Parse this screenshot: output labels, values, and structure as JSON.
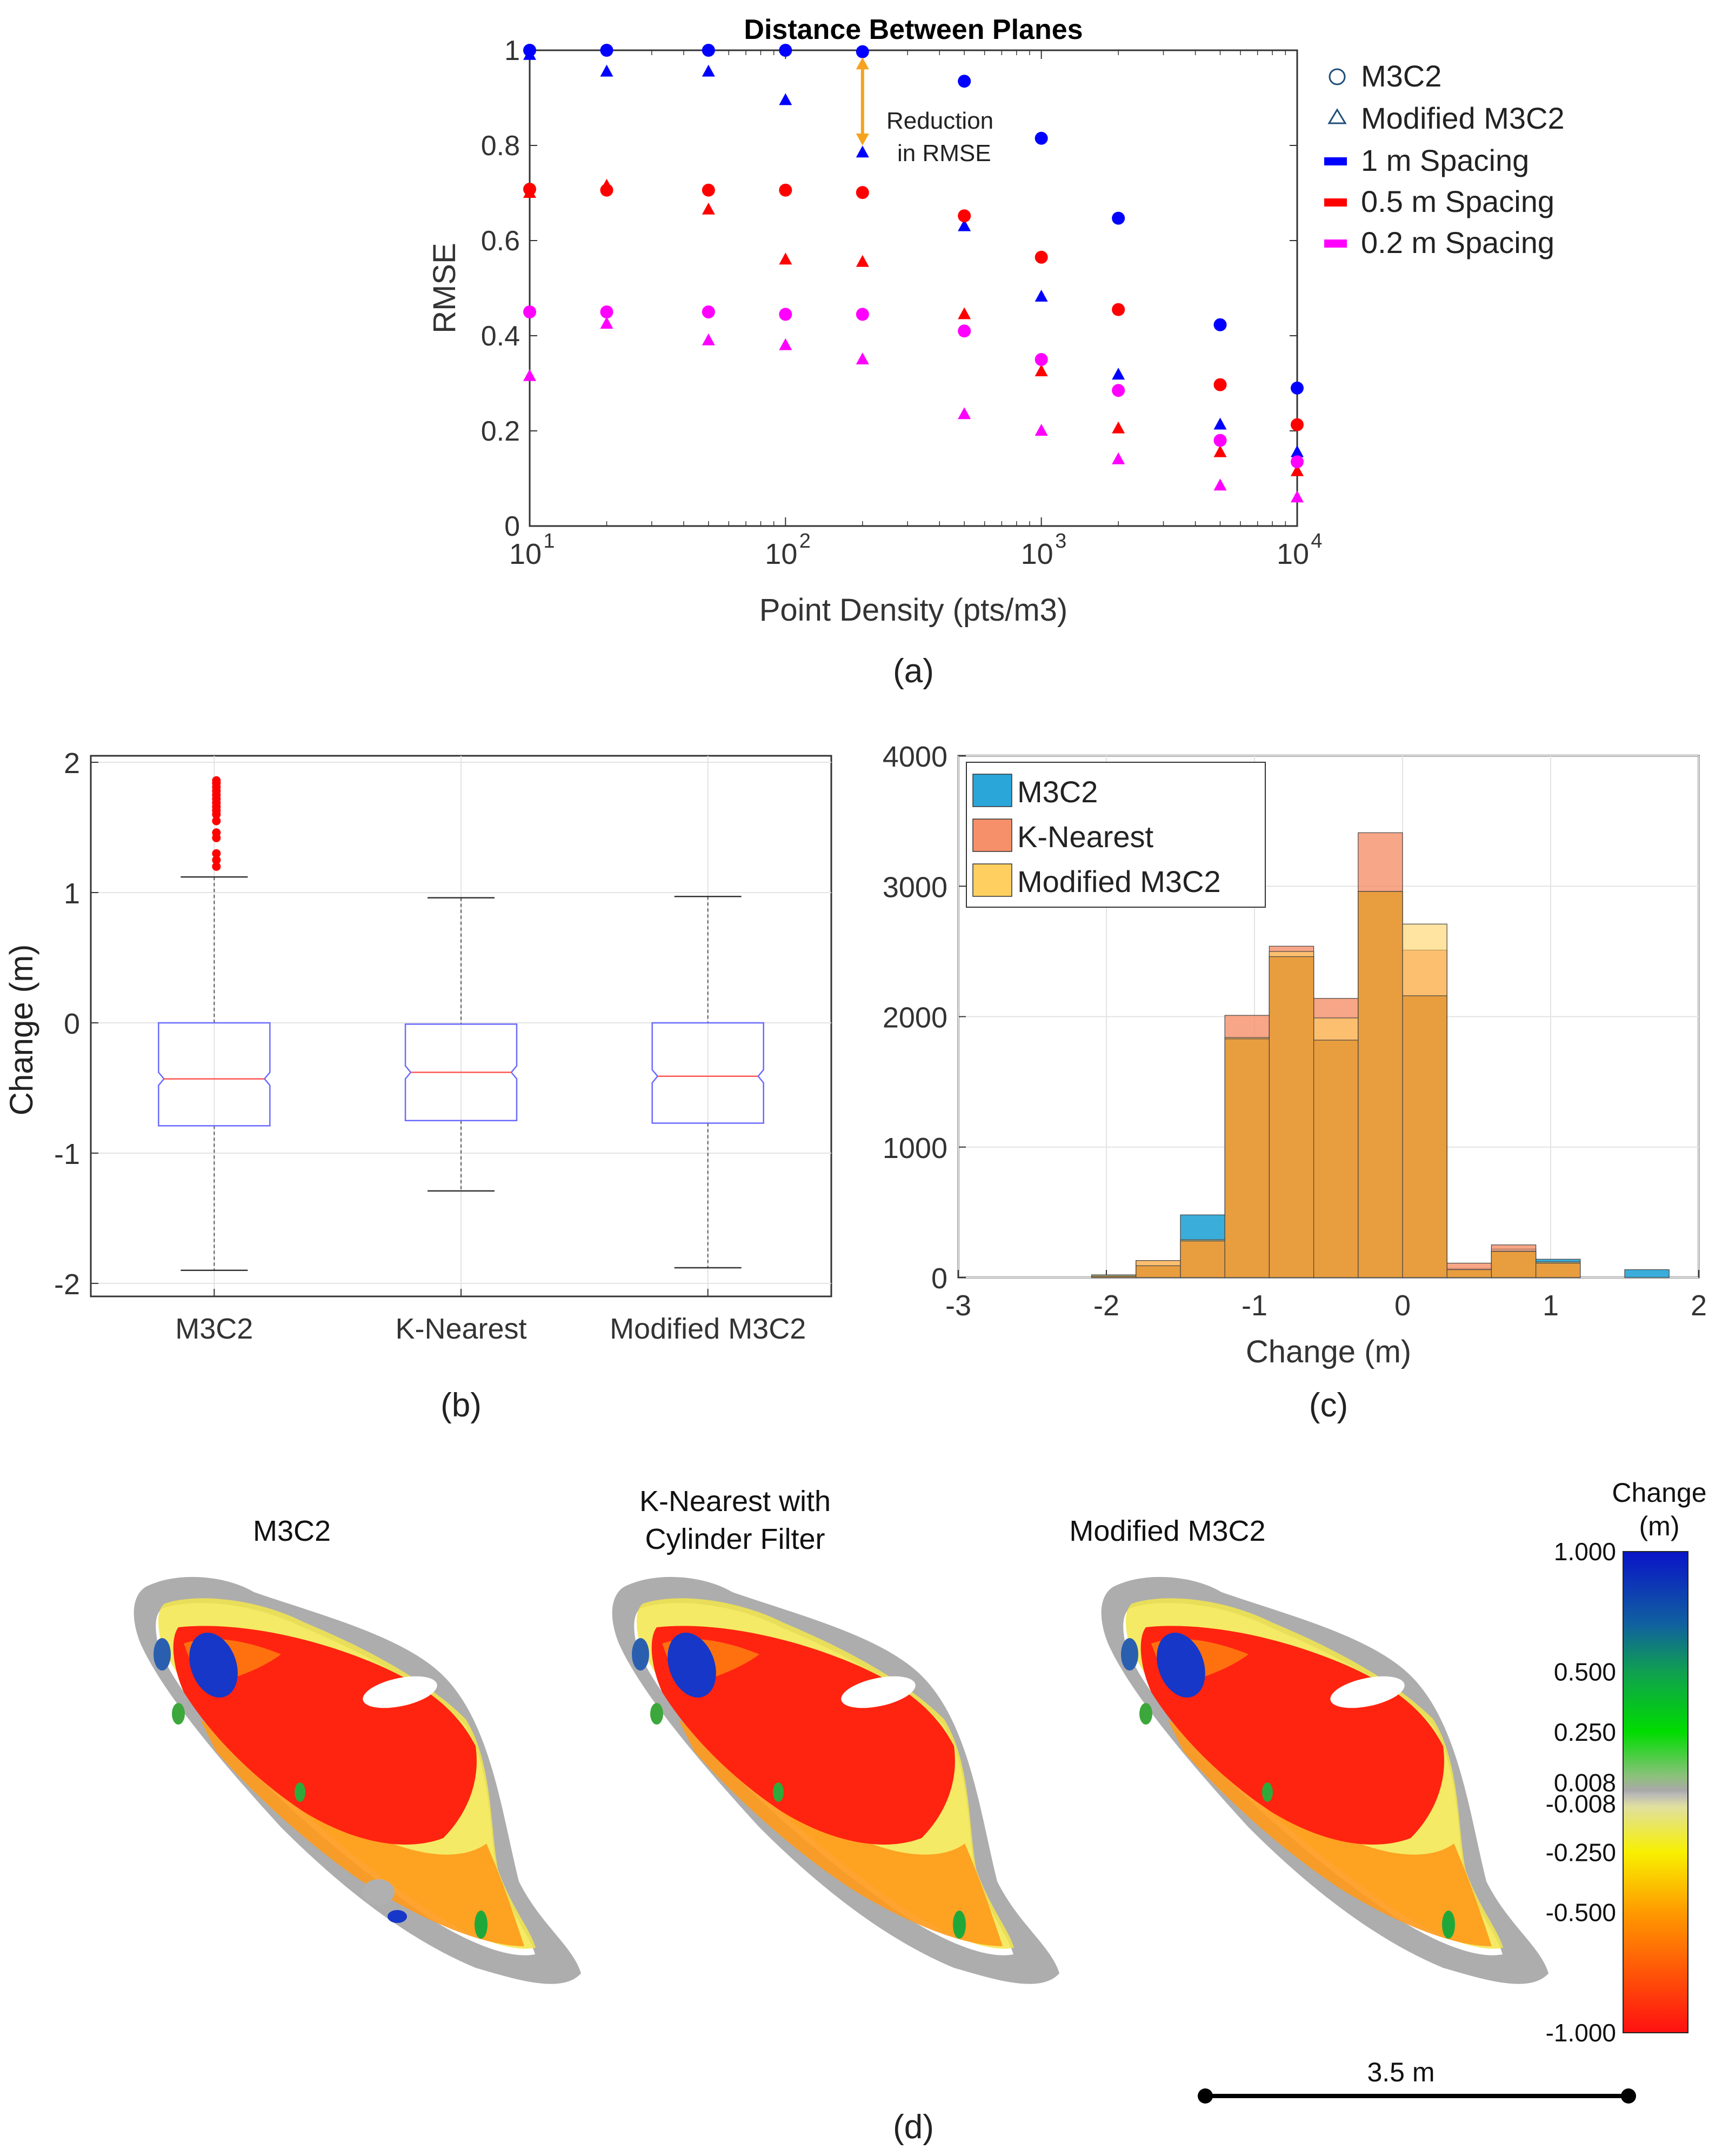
{
  "panel_labels": {
    "a": "(a)",
    "b": "(b)",
    "c": "(c)",
    "d": "(d)"
  },
  "chart_data": [
    {
      "type": "scatter",
      "panel": "(a)",
      "title": "Distance Between Planes",
      "xlabel": "Point Density (pts/m3)",
      "ylabel": "RMSE",
      "xscale": "log",
      "xlim": [
        10,
        10000
      ],
      "ylim": [
        0,
        1
      ],
      "x_ticks": [
        {
          "base": "10",
          "exp": "1"
        },
        {
          "base": "10",
          "exp": "2"
        },
        {
          "base": "10",
          "exp": "3"
        },
        {
          "base": "10",
          "exp": "4"
        }
      ],
      "y_ticks": [
        "0",
        "0.2",
        "0.4",
        "0.6",
        "0.8",
        "1"
      ],
      "x": [
        10,
        20,
        50,
        100,
        200,
        500,
        1000,
        2000,
        5000,
        10000
      ],
      "series": [
        {
          "name": "1 m Spacing M3C2",
          "method": "M3C2",
          "color": "#0000ff",
          "values": [
            1.0,
            1.0,
            1.0,
            1.0,
            0.997,
            0.935,
            0.815,
            0.647,
            0.423,
            0.29
          ]
        },
        {
          "name": "1 m Spacing Modified M3C2",
          "method": "Modified M3C2",
          "color": "#0000ff",
          "values": [
            0.99,
            0.955,
            0.955,
            0.895,
            0.785,
            0.63,
            0.482,
            0.318,
            0.213,
            0.155
          ]
        },
        {
          "name": "0.5 m Spacing M3C2",
          "method": "M3C2",
          "color": "#ff0000",
          "values": [
            0.708,
            0.706,
            0.706,
            0.706,
            0.701,
            0.652,
            0.565,
            0.455,
            0.297,
            0.213
          ]
        },
        {
          "name": "0.5 m Spacing Modified M3C2",
          "method": "Modified M3C2",
          "color": "#ff0000",
          "values": [
            0.7,
            0.715,
            0.665,
            0.56,
            0.555,
            0.445,
            0.325,
            0.205,
            0.155,
            0.115
          ]
        },
        {
          "name": "0.2 m Spacing M3C2",
          "method": "M3C2",
          "color": "#ff00ff",
          "values": [
            0.45,
            0.45,
            0.45,
            0.445,
            0.445,
            0.41,
            0.35,
            0.285,
            0.18,
            0.135
          ]
        },
        {
          "name": "0.2 m Spacing Modified M3C2",
          "method": "Modified M3C2",
          "color": "#ff00ff",
          "values": [
            0.315,
            0.425,
            0.39,
            0.38,
            0.35,
            0.235,
            0.2,
            0.14,
            0.085,
            0.06
          ]
        }
      ],
      "legend": [
        {
          "label": "M3C2",
          "marker": "circle-open",
          "color": "#1f4e79"
        },
        {
          "label": "Modified M3C2",
          "marker": "triangle-open",
          "color": "#1f4e79"
        },
        {
          "label": "1 m Spacing",
          "marker": "bar",
          "color": "#0000ff"
        },
        {
          "label": "0.5 m Spacing",
          "marker": "bar",
          "color": "#ff0000"
        },
        {
          "label": "0.2 m Spacing",
          "marker": "bar",
          "color": "#ff00ff"
        }
      ],
      "legend_position": "outside-right",
      "annotation": {
        "lines": [
          "Reduction",
          "in RMSE"
        ],
        "x": 200,
        "y_from": 0.985,
        "y_to": 0.8,
        "color": "#f5a31e"
      }
    },
    {
      "type": "box",
      "panel": "(b)",
      "ylabel": "Change (m)",
      "ylim": [
        -2.1,
        2.05
      ],
      "y_ticks": [
        "-2",
        "-1",
        "0",
        "1",
        "2"
      ],
      "categories": [
        "M3C2",
        "K-Nearest",
        "Modified M3C2"
      ],
      "boxes": [
        {
          "label": "M3C2",
          "whisker_low": -1.9,
          "q1": -0.79,
          "median": -0.43,
          "q3": 0.0,
          "whisker_high": 1.12,
          "outliers": [
            1.2,
            1.25,
            1.3,
            1.42,
            1.46,
            1.55,
            1.6,
            1.63,
            1.66,
            1.69,
            1.72,
            1.75,
            1.78,
            1.81,
            1.84,
            1.86
          ]
        },
        {
          "label": "K-Nearest",
          "whisker_low": -1.29,
          "q1": -0.75,
          "median": -0.38,
          "q3": -0.01,
          "whisker_high": 0.96,
          "outliers": []
        },
        {
          "label": "Modified M3C2",
          "whisker_low": -1.88,
          "q1": -0.77,
          "median": -0.41,
          "q3": 0.0,
          "whisker_high": 0.97,
          "outliers": []
        }
      ],
      "colors": {
        "box": "#6a6aff",
        "median": "#ff5555",
        "outlier": "#ff0000",
        "whisker": "#555555"
      }
    },
    {
      "type": "histogram",
      "panel": "(c)",
      "xlabel": "Change (m)",
      "ylabel": "",
      "xlim": [
        -3,
        2
      ],
      "ylim": [
        0,
        4000
      ],
      "x_ticks": [
        "-3",
        "-2",
        "-1",
        "0",
        "1",
        "2"
      ],
      "y_ticks": [
        "0",
        "1000",
        "2000",
        "3000",
        "4000"
      ],
      "bin_edges": [
        -2.1,
        -1.8,
        -1.5,
        -1.2,
        -0.9,
        -0.6,
        -0.3,
        0.0,
        0.3,
        0.6,
        0.9,
        1.2,
        1.5,
        1.8
      ],
      "series": [
        {
          "name": "M3C2",
          "color": "#2aa6d8",
          "values": [
            20,
            90,
            480,
            1830,
            2460,
            1820,
            2960,
            2160,
            70,
            220,
            140,
            0,
            60
          ]
        },
        {
          "name": "K-Nearest",
          "color": "#f6906a",
          "values": [
            10,
            130,
            280,
            2010,
            2540,
            2140,
            3410,
            2510,
            110,
            250,
            110,
            0,
            0
          ]
        },
        {
          "name": "Modified M3C2",
          "color": "#ffd060",
          "values": [
            20,
            130,
            290,
            1840,
            2500,
            1990,
            2960,
            2710,
            60,
            200,
            120,
            0,
            0
          ]
        }
      ],
      "legend_position": "top-left"
    }
  ],
  "maps": {
    "panels": [
      {
        "title_lines": [
          "M3C2"
        ]
      },
      {
        "title_lines": [
          "K-Nearest with",
          "Cylinder Filter"
        ]
      },
      {
        "title_lines": [
          "Modified M3C2"
        ]
      }
    ],
    "colorbar": {
      "title_lines": [
        "Change",
        "(m)"
      ],
      "labels": [
        "1.000",
        "0.500",
        "0.250",
        "0.008",
        "-0.008",
        "-0.250",
        "-0.500",
        "-1.000"
      ],
      "stops": [
        {
          "v": 1.0,
          "c": "#0a14c8"
        },
        {
          "v": 0.7,
          "c": "#1060a0"
        },
        {
          "v": 0.5,
          "c": "#10a050"
        },
        {
          "v": 0.25,
          "c": "#00dc00"
        },
        {
          "v": 0.06,
          "c": "#90c080"
        },
        {
          "v": 0.008,
          "c": "#a8a8a8"
        },
        {
          "v": -0.008,
          "c": "#b8b8b8"
        },
        {
          "v": -0.06,
          "c": "#e0e0a0"
        },
        {
          "v": -0.25,
          "c": "#f8f000"
        },
        {
          "v": -0.5,
          "c": "#ff9a00"
        },
        {
          "v": -1.0,
          "c": "#ff1010"
        }
      ]
    },
    "scale_bar": {
      "label": "3.5 m"
    }
  }
}
